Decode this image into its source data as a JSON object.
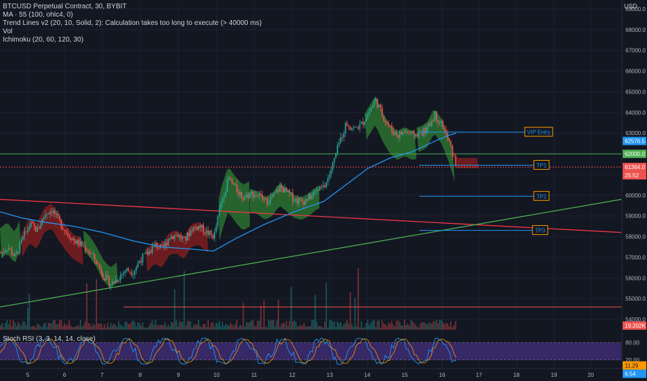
{
  "legend": {
    "title": "BTCUSD Perpetual Contract, 30, BYBIT",
    "ma": "MA · 55 (100, ohlc4, 0)",
    "trend": "Trend Lines v2 (20, 10, Solid, 2): Calculation takes too long to execute (> 40000 ms)",
    "vol": "Vol",
    "ichimoku": "Ichimoku (20, 60, 120, 30)"
  },
  "rsi_label": "Stoch RSI (3, 3, 14, 14, close)",
  "currency": "USD",
  "colors": {
    "background": "#131722",
    "grid": "#1e2230",
    "up": "#26a69a",
    "down": "#ef5350",
    "ma": "#2196f3",
    "cloud_green": "#2e7d32",
    "cloud_red": "#8b1f1f",
    "trend_red": "#f23645",
    "trend_green": "#4caf50",
    "rsi_fill": "#3c2a6e"
  },
  "chart_data": {
    "type": "candlestick",
    "symbol": "BTCUSD Perpetual Contract",
    "interval": "30",
    "exchange": "BYBIT",
    "x_tick_labels": [
      "5",
      "6",
      "7",
      "8",
      "9",
      "10",
      "11",
      "12",
      "13",
      "14",
      "15",
      "16",
      "17",
      "18",
      "19",
      "20"
    ],
    "y_tick_labels": [
      "69000.0",
      "68000.0",
      "67000.0",
      "66000.0",
      "65000.0",
      "64000.0",
      "63000.0",
      "62000.0",
      "61000.0",
      "60000.0",
      "59000.0",
      "58000.0",
      "57000.0",
      "56000.0",
      "55000.0",
      "54000.0"
    ],
    "y_ticks": [
      69000,
      68000,
      67000,
      66000,
      65000,
      64000,
      63000,
      62000,
      61000,
      60000,
      59000,
      58000,
      57000,
      56000,
      55000,
      54000
    ],
    "ylim": [
      53500,
      69300
    ],
    "price_path": [
      [
        0,
        57200
      ],
      [
        1,
        57500
      ],
      [
        2,
        57000
      ],
      [
        3,
        57900
      ],
      [
        4,
        58600
      ],
      [
        5,
        58300
      ],
      [
        6,
        59100
      ],
      [
        7,
        59300
      ],
      [
        8,
        58700
      ],
      [
        9,
        58200
      ],
      [
        10,
        57800
      ],
      [
        11,
        57600
      ],
      [
        12,
        57300
      ],
      [
        13,
        56800
      ],
      [
        14,
        56100
      ],
      [
        15,
        55700
      ],
      [
        16,
        56000
      ],
      [
        17,
        56400
      ],
      [
        18,
        56300
      ],
      [
        19,
        56900
      ],
      [
        20,
        57200
      ],
      [
        21,
        57600
      ],
      [
        22,
        57400
      ],
      [
        23,
        58000
      ],
      [
        24,
        58100
      ],
      [
        25,
        57800
      ],
      [
        26,
        58400
      ],
      [
        27,
        58500
      ],
      [
        28,
        58200
      ],
      [
        29,
        58000
      ],
      [
        30,
        59700
      ],
      [
        31,
        60800
      ],
      [
        32,
        60300
      ],
      [
        33,
        59900
      ],
      [
        34,
        60100
      ],
      [
        35,
        60000
      ],
      [
        36,
        59700
      ],
      [
        37,
        59900
      ],
      [
        38,
        60400
      ],
      [
        39,
        60100
      ],
      [
        40,
        59800
      ],
      [
        41,
        59700
      ],
      [
        42,
        59900
      ],
      [
        43,
        60200
      ],
      [
        44,
        60400
      ],
      [
        45,
        61300
      ],
      [
        46,
        62500
      ],
      [
        47,
        63500
      ],
      [
        48,
        63200
      ],
      [
        49,
        63400
      ],
      [
        50,
        64000
      ],
      [
        51,
        64600
      ],
      [
        52,
        63800
      ],
      [
        53,
        63200
      ],
      [
        54,
        62900
      ],
      [
        55,
        63100
      ],
      [
        56,
        62900
      ],
      [
        57,
        63000
      ],
      [
        58,
        63200
      ],
      [
        59,
        63900
      ],
      [
        60,
        63400
      ],
      [
        61,
        62500
      ],
      [
        62,
        61300
      ]
    ],
    "moving_average": [
      [
        0,
        59200
      ],
      [
        3,
        58900
      ],
      [
        6,
        58700
      ],
      [
        10,
        58500
      ],
      [
        14,
        58200
      ],
      [
        18,
        57800
      ],
      [
        22,
        57500
      ],
      [
        26,
        57400
      ],
      [
        29,
        57300
      ],
      [
        32,
        57900
      ],
      [
        36,
        58600
      ],
      [
        40,
        59200
      ],
      [
        44,
        59700
      ],
      [
        47,
        60500
      ],
      [
        50,
        61300
      ],
      [
        53,
        61800
      ],
      [
        56,
        62100
      ],
      [
        59,
        62600
      ],
      [
        61,
        62900
      ],
      [
        62,
        63000
      ]
    ],
    "current_price": 61364.0,
    "current_price_label": "61364.0",
    "countdown_label": "25:52",
    "ma_last_label": "62576.5",
    "hline_label": "62000.0",
    "horizontal_lines": [
      {
        "price": 62000,
        "color": "#4caf50"
      },
      {
        "price": 61364,
        "color": "#ef5350",
        "dashed": true
      },
      {
        "price": 54600,
        "color": "#ef5350"
      }
    ],
    "targets": [
      {
        "label": "VIP Entry",
        "price": 63050
      },
      {
        "label": "TP1",
        "price": 61450
      },
      {
        "label": "TP2",
        "price": 59950
      },
      {
        "label": "TP3",
        "price": 58300
      }
    ],
    "trend_lines": [
      {
        "color": "#f23645",
        "from": [
          0,
          59800
        ],
        "to": [
          80,
          58200
        ]
      },
      {
        "color": "#4caf50",
        "from": [
          0,
          54600
        ],
        "to": [
          80,
          59800
        ]
      }
    ],
    "volume_label": "19.202K",
    "stoch_rsi": {
      "k_last_label": "11.29",
      "d_last_label": "6.54",
      "upper_label": "80.00",
      "lower_label": "20.00",
      "upper": 80,
      "lower": 20
    }
  }
}
